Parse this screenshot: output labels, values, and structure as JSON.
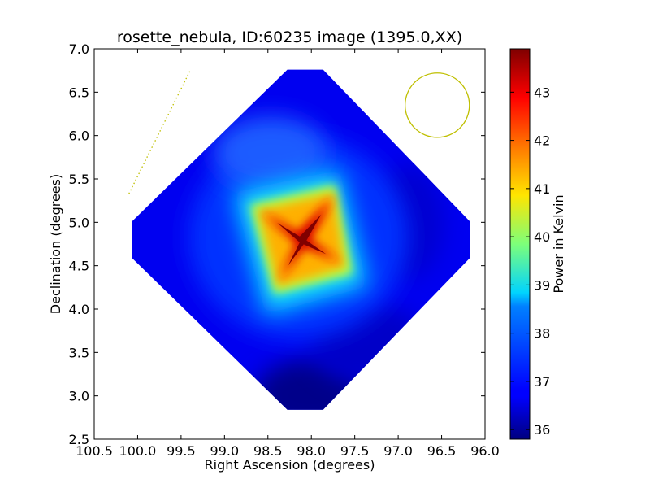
{
  "chart_data": {
    "type": "heatmap",
    "title": "rosette_nebula, ID:60235 image (1395.0,XX)",
    "xlabel": "Right Ascension (degrees)",
    "ylabel": "Declination (degrees)",
    "colorbar_label": "Power in Kelvin",
    "xlim": [
      100.5,
      96.0
    ],
    "ylim": [
      2.5,
      7.0
    ],
    "x_ticks": [
      100.5,
      100.0,
      99.5,
      99.0,
      98.5,
      98.0,
      97.5,
      97.0,
      96.5,
      96.0
    ],
    "x_tick_labels": [
      "100.5",
      "100.0",
      "99.5",
      "99.0",
      "98.5",
      "98.0",
      "97.5",
      "97.0",
      "96.5",
      "96.0"
    ],
    "y_ticks": [
      2.5,
      3.0,
      3.5,
      4.0,
      4.5,
      5.0,
      5.5,
      6.0,
      6.5,
      7.0
    ],
    "y_tick_labels": [
      "2.5",
      "3.0",
      "3.5",
      "4.0",
      "4.5",
      "5.0",
      "5.5",
      "6.0",
      "6.5",
      "7.0"
    ],
    "colorbar_range": [
      35.8,
      43.9
    ],
    "colorbar_ticks": [
      36,
      37,
      38,
      39,
      40,
      41,
      42,
      43
    ],
    "colorbar_tick_labels": [
      "36",
      "37",
      "38",
      "39",
      "40",
      "41",
      "42",
      "43"
    ],
    "colormap": "jet",
    "map_center": [
      98.1,
      4.78
    ],
    "map_peak_value": 43.9,
    "map_diamond": {
      "top": [
        98.07,
        6.76
      ],
      "right": [
        96.17,
        4.8
      ],
      "bottom": [
        98.07,
        2.84
      ],
      "left": [
        100.07,
        4.8
      ]
    },
    "overlays": {
      "beam_circle": {
        "center": [
          96.55,
          6.35
        ],
        "radius_deg": 0.37,
        "color": "#bfbf00"
      },
      "dotted_line": {
        "from": [
          100.1,
          5.33
        ],
        "to": [
          99.4,
          6.74
        ],
        "color": "#bfbf00"
      }
    }
  }
}
